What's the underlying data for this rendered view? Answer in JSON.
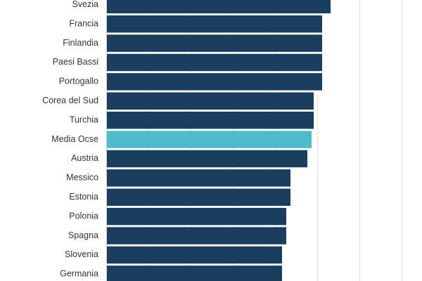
{
  "chart_data": {
    "type": "bar",
    "orientation": "horizontal",
    "categories": [
      "Svezia",
      "Francia",
      "Finlandia",
      "Paesi Bassi",
      "Portogallo",
      "Corea del Sud",
      "Turchia",
      "Media Ocse",
      "Austria",
      "Messico",
      "Estonia",
      "Polonia",
      "Spagna",
      "Slovenia",
      "Germania"
    ],
    "values": [
      53,
      51,
      51,
      51,
      51,
      49,
      49,
      48.5,
      47.5,
      43.5,
      43.5,
      42.5,
      42.5,
      41.5,
      41.5
    ],
    "highlight_category": "Media Ocse",
    "xlim": [
      0,
      70
    ],
    "grid": true,
    "colors": {
      "bar": "#1a3f5e",
      "highlight": "#4dbcc8",
      "grid": "#e3e3e3",
      "label": "#333333"
    }
  }
}
